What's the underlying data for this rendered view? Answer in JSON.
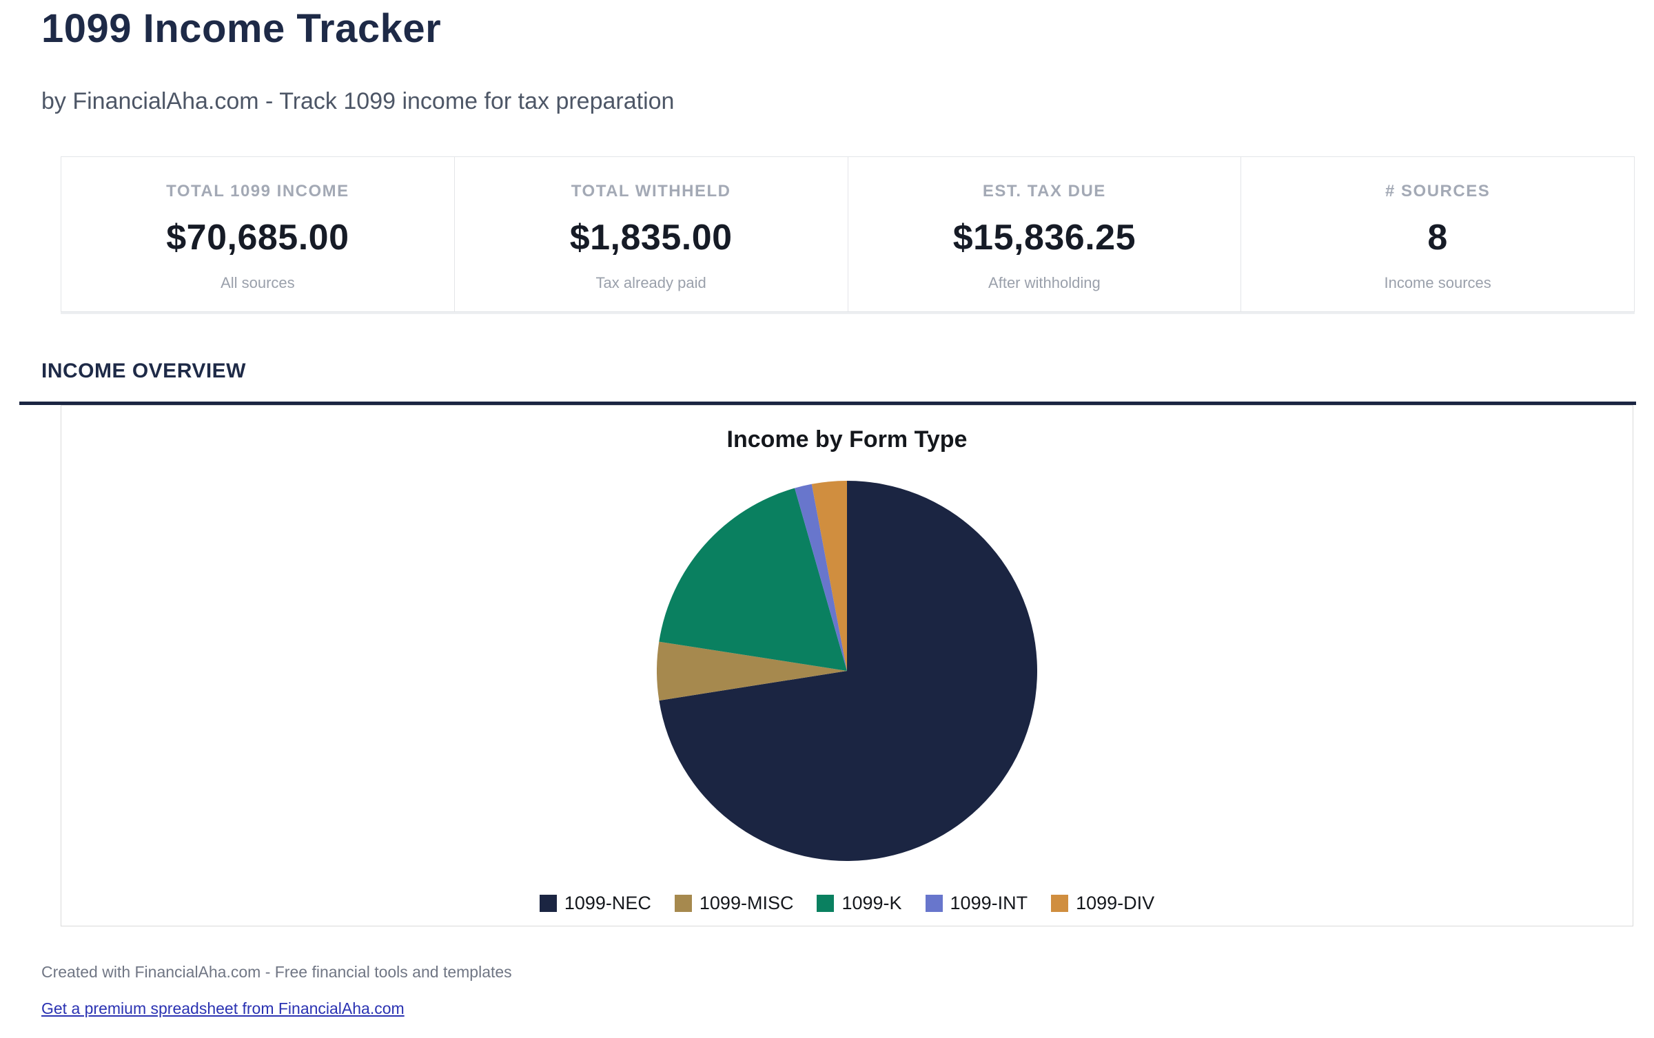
{
  "page": {
    "title": "1099 Income Tracker",
    "subtitle": "by FinancialAha.com - Track 1099 income for tax preparation"
  },
  "stats": {
    "cards": [
      {
        "label": "TOTAL 1099 INCOME",
        "value": "$70,685.00",
        "sublabel": "All sources"
      },
      {
        "label": "TOTAL WITHHELD",
        "value": "$1,835.00",
        "sublabel": "Tax already paid"
      },
      {
        "label": "EST. TAX DUE",
        "value": "$15,836.25",
        "sublabel": "After withholding"
      },
      {
        "label": "# SOURCES",
        "value": "8",
        "sublabel": "Income sources"
      }
    ]
  },
  "section": {
    "heading": "INCOME OVERVIEW"
  },
  "chart_data": {
    "type": "pie",
    "title": "Income by Form Type",
    "categories": [
      "1099-NEC",
      "1099-MISC",
      "1099-K",
      "1099-INT",
      "1099-DIV"
    ],
    "values": [
      51250,
      3500,
      12800,
      1035,
      2100
    ],
    "percentages": [
      72.5,
      5.0,
      18.1,
      1.5,
      3.0
    ],
    "total": 70685,
    "colors": [
      "#1b2542",
      "#a6894e",
      "#0a8060",
      "#6876cc",
      "#d08e3f"
    ],
    "legend_position": "bottom",
    "start_angle_deg": -90,
    "direction": "clockwise"
  },
  "theme": {
    "accent_navy": "#1e2a47",
    "rule_navy": "#1b2542",
    "link_blue": "#2a32b2"
  },
  "footer": {
    "credit": "Created with FinancialAha.com - Free financial tools and templates",
    "link_text": "Get a premium spreadsheet from FinancialAha.com"
  }
}
